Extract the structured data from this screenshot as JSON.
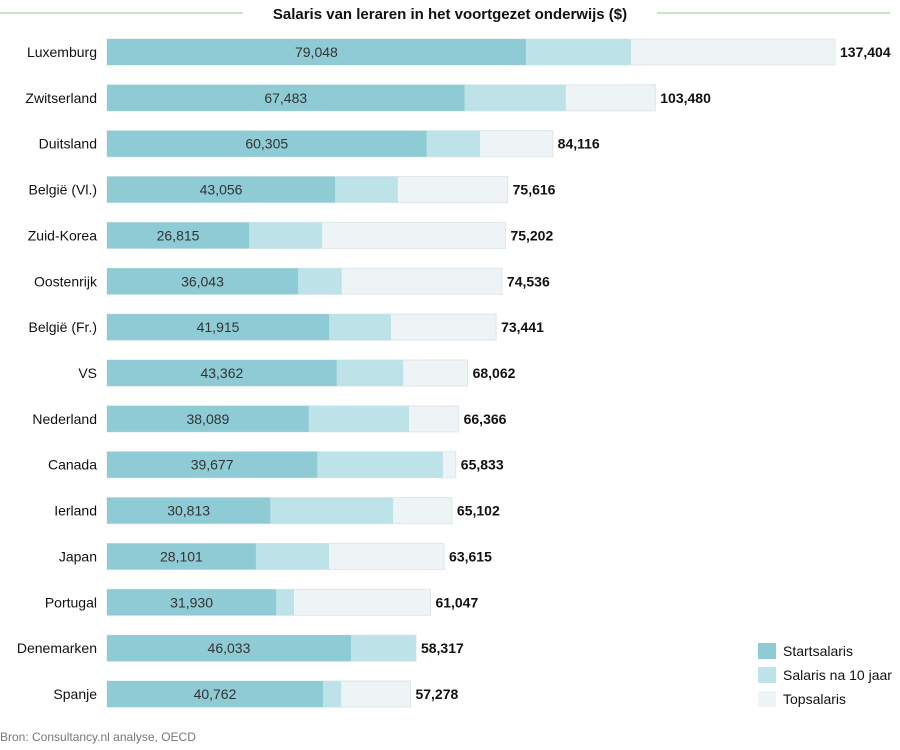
{
  "chart_data": {
    "type": "bar",
    "orientation": "horizontal",
    "stacked_overlay": true,
    "title": "Salaris van leraren in het voortgezet onderwijs ($)",
    "source": "Bron: Consultancy.nl analyse, OECD",
    "categories": [
      "Luxemburg",
      "Zwitserland",
      "Duitsland",
      "België (Vl.)",
      "Zuid-Korea",
      "Oostenrijk",
      "België (Fr.)",
      "VS",
      "Nederland",
      "Canada",
      "Ierland",
      "Japan",
      "Portugal",
      "Denemarken",
      "Spanje"
    ],
    "series": [
      {
        "name": "Startsalaris",
        "color": "#8ecbd5",
        "values": [
          79048,
          67483,
          60305,
          43056,
          26815,
          36043,
          41915,
          43362,
          38089,
          39677,
          30813,
          28101,
          31930,
          46033,
          40762
        ]
      },
      {
        "name": "Salaris na 10 jaar",
        "color": "#bde2e8",
        "values": [
          98900,
          86600,
          70400,
          54900,
          40600,
          44300,
          53600,
          55900,
          57000,
          63400,
          54000,
          41900,
          35300,
          58300,
          44200
        ]
      },
      {
        "name": "Topsalaris",
        "color": "#eef4f6",
        "values": [
          137404,
          103480,
          84116,
          75616,
          75202,
          74536,
          73441,
          68062,
          66366,
          65833,
          65102,
          63615,
          61047,
          58317,
          57278
        ]
      }
    ],
    "start_labels": [
      "79,048",
      "67,483",
      "60,305",
      "43,056",
      "26,815",
      "36,043",
      "41,915",
      "43,362",
      "38,089",
      "39,677",
      "30,813",
      "28,101",
      "31,930",
      "46,033",
      "40,762"
    ],
    "top_labels": [
      "137,404",
      "103,480",
      "84,116",
      "75,616",
      "75,202",
      "74,536",
      "73,441",
      "68,062",
      "66,366",
      "65,833",
      "65,102",
      "63,615",
      "61,047",
      "58,317",
      "57,278"
    ],
    "xlim": [
      0,
      137404
    ],
    "grid": false,
    "legend_position": "bottom-right"
  }
}
